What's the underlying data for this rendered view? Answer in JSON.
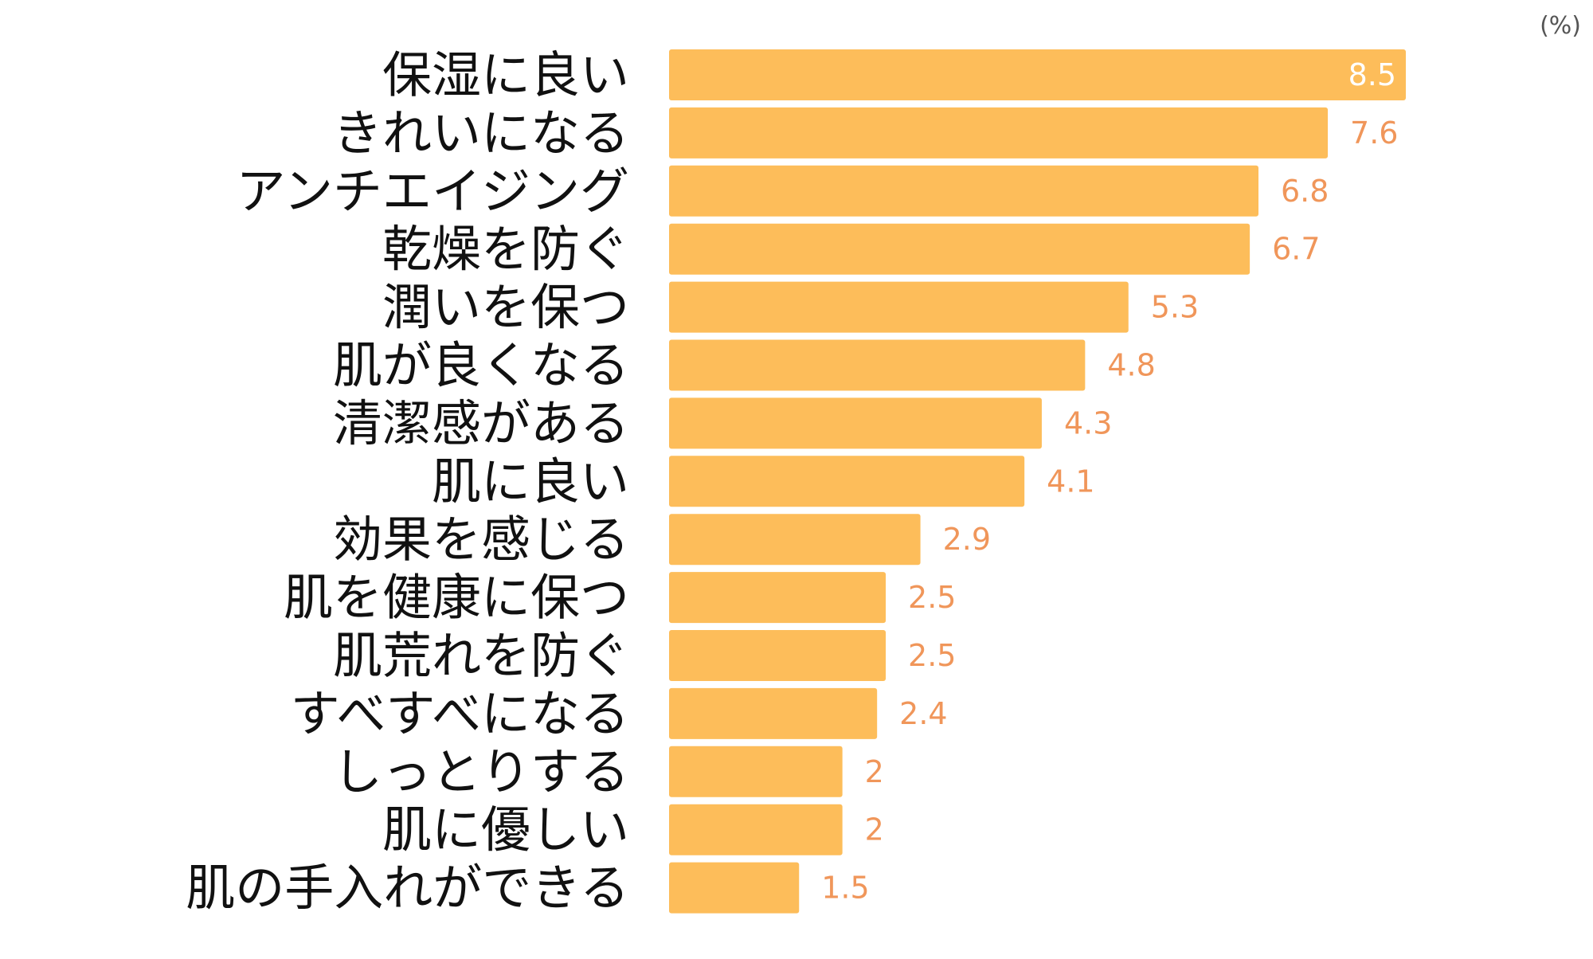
{
  "chart_data": {
    "type": "bar",
    "orientation": "horizontal",
    "unit": "(%)",
    "categories": [
      "保湿に良い",
      "きれいになる",
      "アンチエイジング",
      "乾燥を防ぐ",
      "潤いを保つ",
      "肌が良くなる",
      "清潔感がある",
      "肌に良い",
      "効果を感じる",
      "肌を健康に保つ",
      "肌荒れを防ぐ",
      "すべすべになる",
      "しっとりする",
      "肌に優しい",
      "肌の手入れができる"
    ],
    "values": [
      8.5,
      7.6,
      6.8,
      6.7,
      5.3,
      4.8,
      4.3,
      4.1,
      2.9,
      2.5,
      2.5,
      2.4,
      2,
      2,
      1.5
    ],
    "value_labels": [
      "8.5",
      "7.6",
      "6.8",
      "6.7",
      "5.3",
      "4.8",
      "4.3",
      "4.1",
      "2.9",
      "2.5",
      "2.5",
      "2.4",
      "2",
      "2",
      "1.5"
    ],
    "xlim": [
      0,
      8.5
    ],
    "grid": false,
    "colors": {
      "bar": "#FDBD5A",
      "value_label": "#F0965A",
      "value_label_inside": "#FFFFFF",
      "category_label": "#111111",
      "unit": "#555555"
    }
  }
}
